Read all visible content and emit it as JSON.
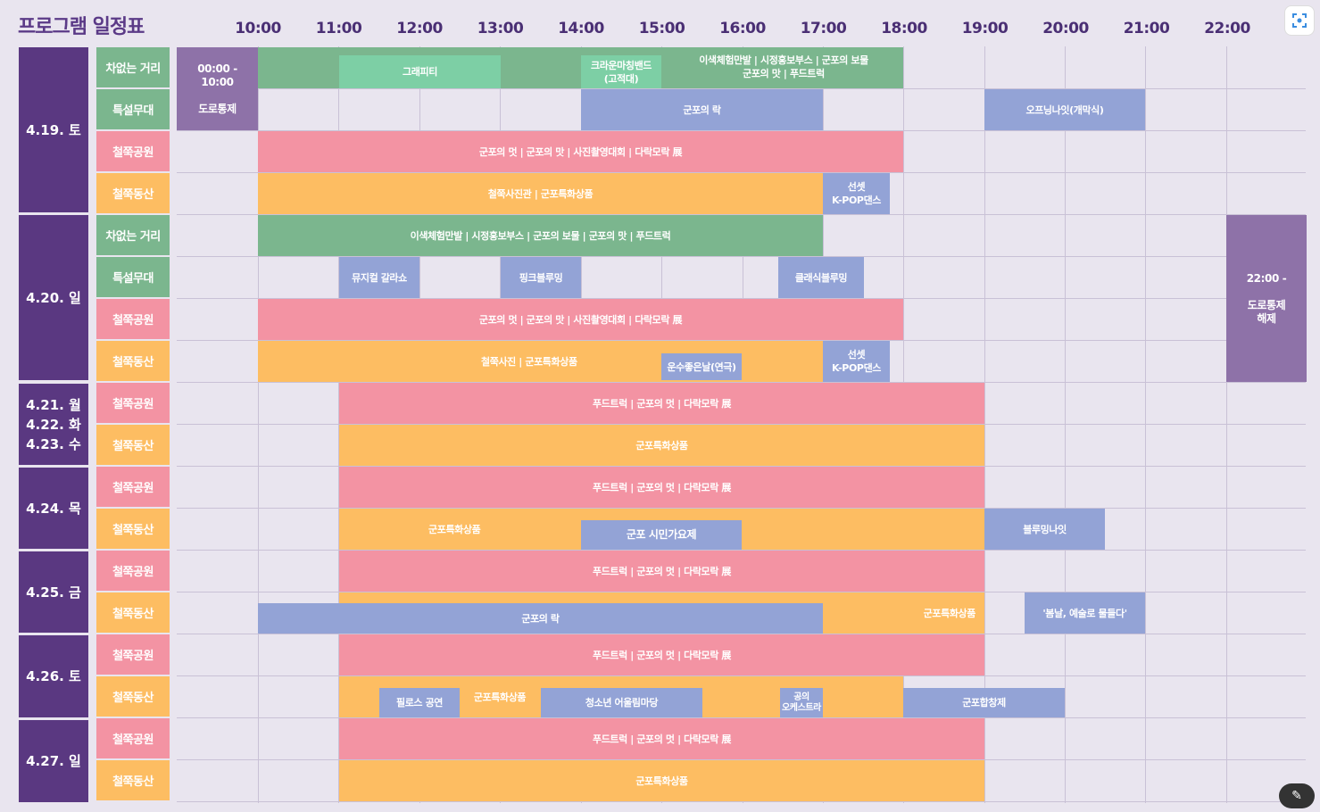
{
  "title": "프로그램 일정표",
  "hours": [
    "10:00",
    "11:00",
    "12:00",
    "13:00",
    "14:00",
    "15:00",
    "16:00",
    "17:00",
    "18:00",
    "19:00",
    "20:00",
    "21:00",
    "22:00"
  ],
  "dates": [
    {
      "label": "4.19. 토"
    },
    {
      "label": "4.20. 일"
    },
    {
      "label": "4.21. 월\n4.22. 화\n4.23. 수"
    },
    {
      "label": "4.24. 목"
    },
    {
      "label": "4.25. 금"
    },
    {
      "label": "4.26. 토"
    },
    {
      "label": "4.27. 일"
    }
  ],
  "venues": [
    "차없는 거리",
    "특설무대",
    "철쭉공원",
    "철쭉동산",
    "차없는 거리",
    "특설무대",
    "철쭉공원",
    "철쭉동산",
    "철쭉공원",
    "철쭉동산",
    "철쭉공원",
    "철쭉동산",
    "철쭉공원",
    "철쭉동산",
    "철쭉공원",
    "철쭉동산",
    "철쭉공원",
    "철쭉동산"
  ],
  "events": {
    "road_close": "00:00 -\n10:00\n\n도로통제",
    "road_open": "22:00 -\n\n도로통제\n해제",
    "d19_street_main": "",
    "graffiti": "그래피티",
    "crown": "크라운마칭밴드\n(고적대)",
    "d19_street_combo": "이색체험만발 | 시정홍보부스 | 군포의 보물\n군포의 맛 | 푸드트럭",
    "d19_stage_rock": "군포의 락",
    "opening_night": "오프닝나잇(개막식)",
    "d19_park": "군포의 멋 | 군포의 맛 | 사진촬영대회 | 다락모락 展",
    "d19_hill": "철쭉사진관 | 군포특화상품",
    "sunset1": "선셋\nK-POP댄스",
    "d20_street": "이색체험만발 | 시정홍보부스 | 군포의 보물 | 군포의 맛 | 푸드트럭",
    "musical": "뮤지컬 갈라쇼",
    "pink_bloom": "핑크블루밍",
    "classic_bloom": "클래식블루밍",
    "d20_park": "군포의 멋 | 군포의 맛 | 사진촬영대회 | 다락모락 展",
    "d20_hill": "철쭉사진 | 군포특화상품",
    "good_day": "운수좋은날(연극)",
    "sunset2": "선셋\nK-POP댄스",
    "weekday_park": "푸드트럭 | 군포의 멋 | 다락모락 展",
    "weekday_hill": "군포특화상품",
    "d24_park": "푸드트럭 | 군포의 멋 | 다락모락 展",
    "d24_hill": "군포특화상품",
    "citizen_song": "군포 시민가요제",
    "blooming_night": "블루밍나잇",
    "d25_park": "푸드트럭 | 군포의 멋 | 다락모락 展",
    "d25_rock": "군포의 락",
    "d25_hill": "군포특화상품",
    "spring_art": "'봄날, 예술로 물들다'",
    "d26_park": "푸드트럭 | 군포의 멋 | 다락모락 展",
    "pilos": "필로스 공연",
    "d26_hill": "군포특화상품",
    "youth": "청소년 어울림마당",
    "ball_orch": "공의\n오케스트라",
    "choir": "군포합창제",
    "d27_park": "푸드트럭 | 군포의 멋 | 다락모락 展",
    "d27_hill": "군포특화상품"
  },
  "colors": {
    "green": "#7bb68e",
    "light_green": "#7dcfa5",
    "blue": "#93a3d6",
    "pink": "#f393a3",
    "orange": "#fdbd62",
    "purple": "#8e72a8",
    "date_purple": "#5a3881"
  },
  "icons": {
    "top_right": "screen-capture-icon",
    "bottom_right": "magic-wand-icon"
  }
}
